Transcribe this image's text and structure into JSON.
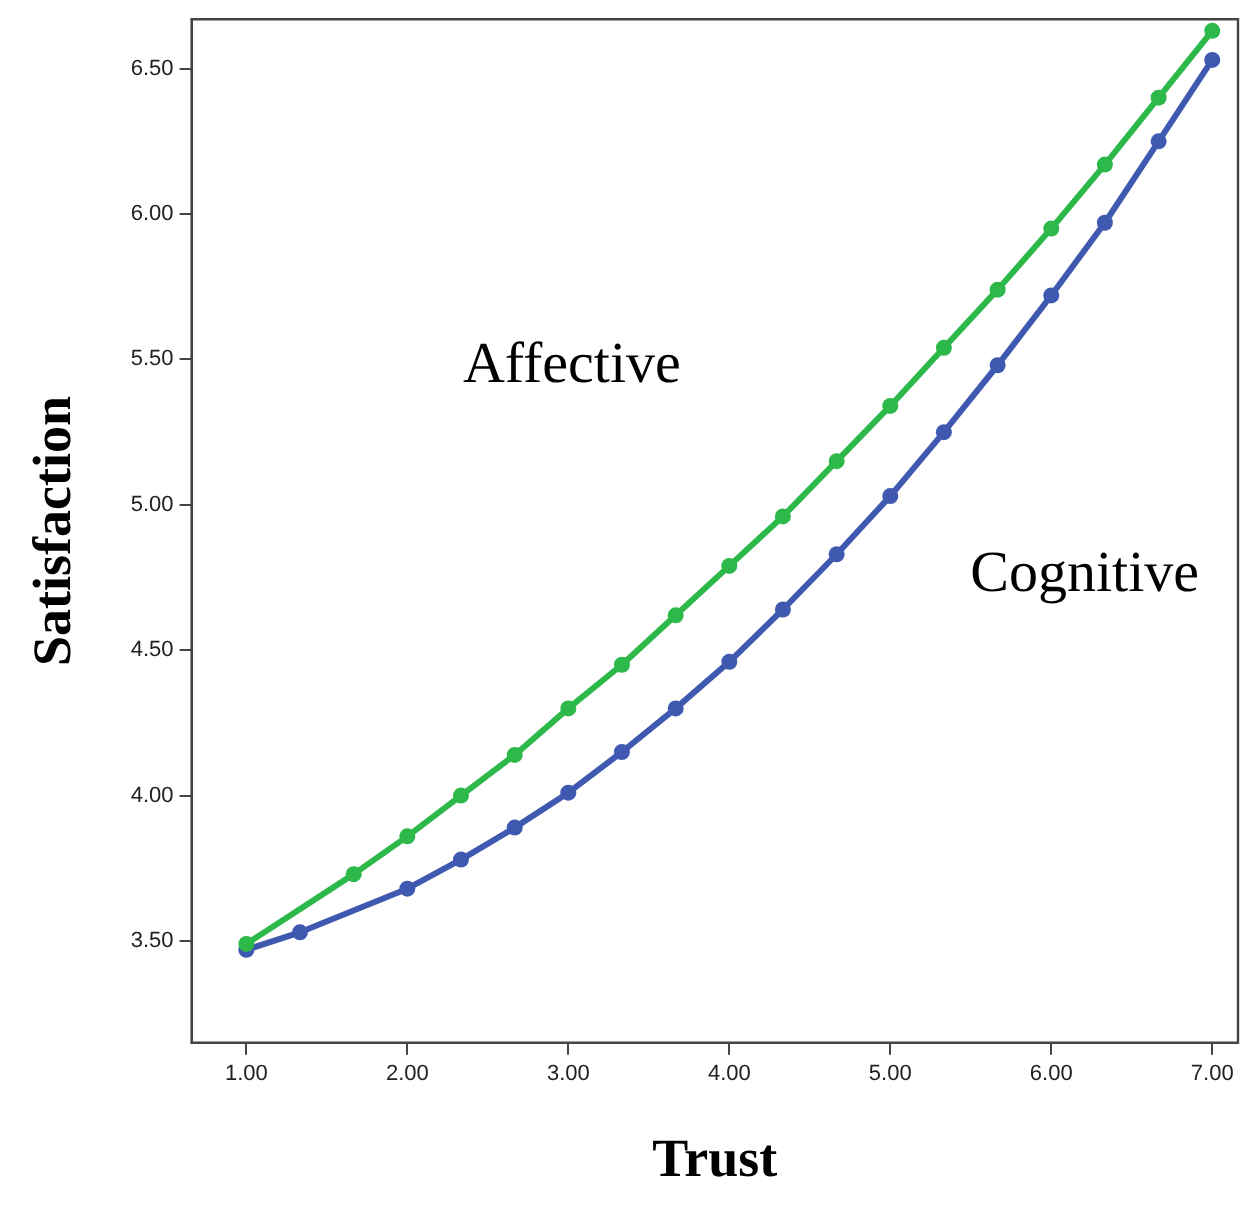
{
  "chart_data": {
    "type": "line",
    "xlabel": "Trust",
    "ylabel": "Satisfaction",
    "xlim": [
      0.66,
      7.16
    ],
    "ylim": [
      3.15,
      6.67
    ],
    "xticks": [
      {
        "value": 1,
        "label": "1.00"
      },
      {
        "value": 2,
        "label": "2.00"
      },
      {
        "value": 3,
        "label": "3.00"
      },
      {
        "value": 4,
        "label": "4.00"
      },
      {
        "value": 5,
        "label": "5.00"
      },
      {
        "value": 6,
        "label": "6.00"
      },
      {
        "value": 7,
        "label": "7.00"
      }
    ],
    "yticks": [
      {
        "value": 3.5,
        "label": "3.50"
      },
      {
        "value": 4,
        "label": "4.00"
      },
      {
        "value": 4.5,
        "label": "4.50"
      },
      {
        "value": 5,
        "label": "5.00"
      },
      {
        "value": 5.5,
        "label": "5.50"
      },
      {
        "value": 6,
        "label": "6.00"
      },
      {
        "value": 6.5,
        "label": "6.50"
      }
    ],
    "grid": false,
    "legend": false,
    "marker": "circle",
    "line_style": "solid",
    "series": [
      {
        "name": "Affective",
        "color": "#2db84a",
        "x": [
          1,
          1.667,
          2,
          2.333,
          2.667,
          3,
          3.333,
          3.667,
          4,
          4.333,
          4.667,
          5,
          5.333,
          5.667,
          6,
          6.333,
          6.667,
          7
        ],
        "values": [
          3.49,
          3.73,
          3.86,
          4.0,
          4.14,
          4.3,
          4.45,
          4.62,
          4.79,
          4.96,
          5.15,
          5.34,
          5.54,
          5.74,
          5.95,
          6.17,
          6.4,
          6.63
        ]
      },
      {
        "name": "Cognitive",
        "color": "#3f58b0",
        "x": [
          1,
          1.333,
          2,
          2.333,
          2.667,
          3,
          3.333,
          3.667,
          4,
          4.333,
          4.667,
          5,
          5.333,
          5.667,
          6,
          6.333,
          6.667,
          7
        ],
        "values": [
          3.47,
          3.53,
          3.68,
          3.78,
          3.89,
          4.01,
          4.15,
          4.3,
          4.46,
          4.64,
          4.83,
          5.03,
          5.25,
          5.48,
          5.72,
          5.97,
          6.25,
          6.53
        ]
      }
    ]
  }
}
